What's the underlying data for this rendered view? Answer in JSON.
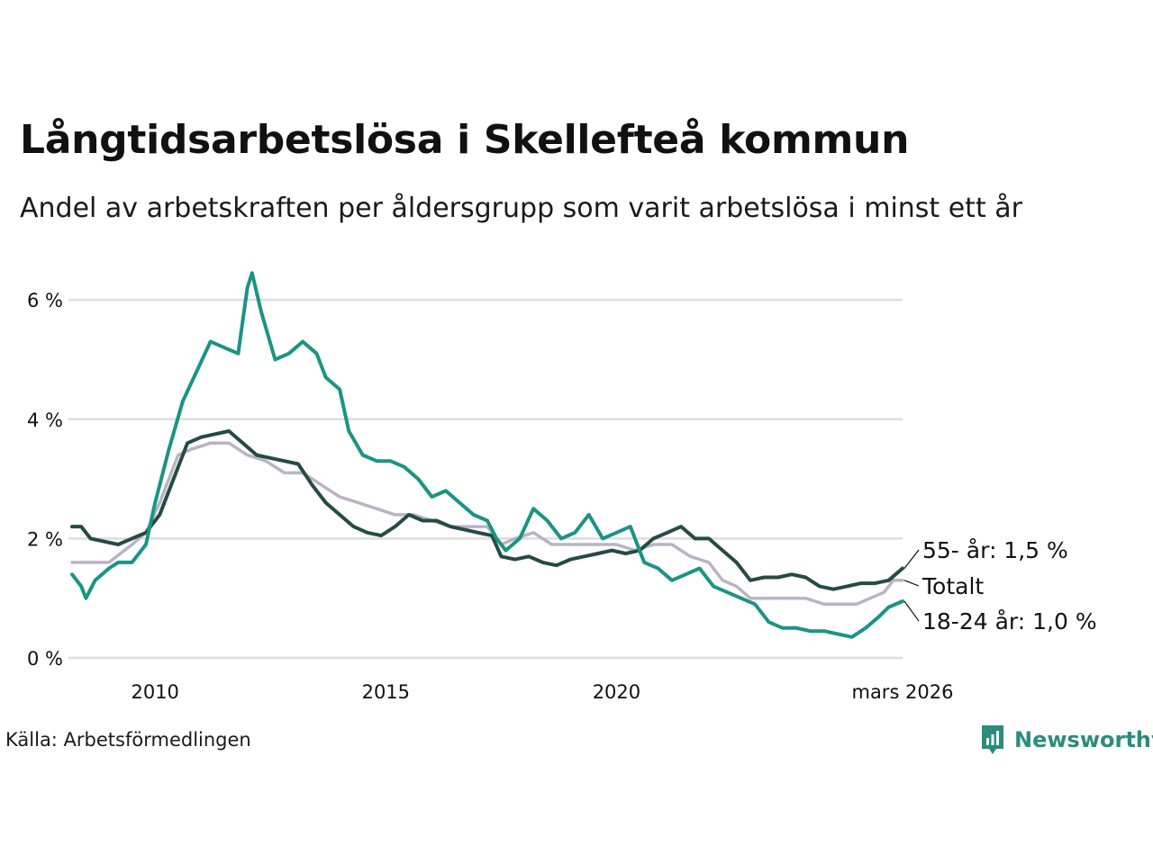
{
  "chart_data": {
    "type": "line",
    "title": "Långtidsarbetslösa i Skellefteå kommun",
    "subtitle": "Andel av arbetskraften per åldersgrupp som varit arbetslösa i minst ett år",
    "source": "Källa: Arbetsförmedlingen",
    "brand": "Newsworthy",
    "x_unit": "år",
    "xlim": [
      2008.2,
      2026.2
    ],
    "ylim": [
      0,
      6.5
    ],
    "yticks": [
      0,
      2,
      4,
      6
    ],
    "ytick_labels": [
      "0 %",
      "2 %",
      "4 %",
      "6 %"
    ],
    "xticks": [
      2010,
      2015,
      2020,
      2026.2
    ],
    "xtick_labels": [
      "2010",
      "2015",
      "2020",
      "mars 2026"
    ],
    "grid": true,
    "colors": {
      "youth": "#1a9484",
      "senior": "#254b45",
      "total": "#b9b4c4",
      "grid": "#dddddd",
      "text": "#111111",
      "brand": "#2a8c7d"
    },
    "series": [
      {
        "key": "total",
        "name": "Totalt",
        "label": "Totalt",
        "color": "#b9b4c4",
        "points": [
          [
            2008.2,
            1.6
          ],
          [
            2008.5,
            1.6
          ],
          [
            2009.0,
            1.6
          ],
          [
            2009.5,
            1.9
          ],
          [
            2009.8,
            2.1
          ],
          [
            2010.1,
            2.6
          ],
          [
            2010.5,
            3.4
          ],
          [
            2010.8,
            3.5
          ],
          [
            2011.2,
            3.6
          ],
          [
            2011.6,
            3.6
          ],
          [
            2012.0,
            3.4
          ],
          [
            2012.4,
            3.3
          ],
          [
            2012.8,
            3.1
          ],
          [
            2013.2,
            3.1
          ],
          [
            2013.6,
            2.9
          ],
          [
            2014.0,
            2.7
          ],
          [
            2014.4,
            2.6
          ],
          [
            2014.8,
            2.5
          ],
          [
            2015.2,
            2.4
          ],
          [
            2015.6,
            2.4
          ],
          [
            2016.0,
            2.3
          ],
          [
            2016.4,
            2.2
          ],
          [
            2016.8,
            2.2
          ],
          [
            2017.2,
            2.2
          ],
          [
            2017.5,
            1.9
          ],
          [
            2017.8,
            2.0
          ],
          [
            2018.2,
            2.1
          ],
          [
            2018.6,
            1.9
          ],
          [
            2019.0,
            1.9
          ],
          [
            2019.5,
            1.9
          ],
          [
            2020.0,
            1.9
          ],
          [
            2020.4,
            1.8
          ],
          [
            2020.8,
            1.9
          ],
          [
            2021.2,
            1.9
          ],
          [
            2021.6,
            1.7
          ],
          [
            2022.0,
            1.6
          ],
          [
            2022.3,
            1.3
          ],
          [
            2022.6,
            1.2
          ],
          [
            2022.9,
            1.0
          ],
          [
            2023.3,
            1.0
          ],
          [
            2023.7,
            1.0
          ],
          [
            2024.1,
            1.0
          ],
          [
            2024.5,
            0.9
          ],
          [
            2024.9,
            0.9
          ],
          [
            2025.2,
            0.9
          ],
          [
            2025.5,
            1.0
          ],
          [
            2025.8,
            1.1
          ],
          [
            2026.0,
            1.3
          ],
          [
            2026.2,
            1.3
          ]
        ]
      },
      {
        "key": "senior",
        "name": "55- år",
        "label": "55- år: 1,5 %",
        "color": "#254b45",
        "points": [
          [
            2008.2,
            2.2
          ],
          [
            2008.4,
            2.2
          ],
          [
            2008.6,
            2.0
          ],
          [
            2008.9,
            1.95
          ],
          [
            2009.2,
            1.9
          ],
          [
            2009.5,
            2.0
          ],
          [
            2009.8,
            2.1
          ],
          [
            2010.1,
            2.4
          ],
          [
            2010.4,
            3.0
          ],
          [
            2010.7,
            3.6
          ],
          [
            2011.0,
            3.7
          ],
          [
            2011.3,
            3.75
          ],
          [
            2011.6,
            3.8
          ],
          [
            2011.9,
            3.6
          ],
          [
            2012.2,
            3.4
          ],
          [
            2012.5,
            3.35
          ],
          [
            2012.8,
            3.3
          ],
          [
            2013.1,
            3.25
          ],
          [
            2013.4,
            2.9
          ],
          [
            2013.7,
            2.6
          ],
          [
            2014.0,
            2.4
          ],
          [
            2014.3,
            2.2
          ],
          [
            2014.6,
            2.1
          ],
          [
            2014.9,
            2.05
          ],
          [
            2015.2,
            2.2
          ],
          [
            2015.5,
            2.4
          ],
          [
            2015.8,
            2.3
          ],
          [
            2016.1,
            2.3
          ],
          [
            2016.4,
            2.2
          ],
          [
            2016.7,
            2.15
          ],
          [
            2017.0,
            2.1
          ],
          [
            2017.3,
            2.05
          ],
          [
            2017.5,
            1.7
          ],
          [
            2017.8,
            1.65
          ],
          [
            2018.1,
            1.7
          ],
          [
            2018.4,
            1.6
          ],
          [
            2018.7,
            1.55
          ],
          [
            2019.0,
            1.65
          ],
          [
            2019.3,
            1.7
          ],
          [
            2019.6,
            1.75
          ],
          [
            2019.9,
            1.8
          ],
          [
            2020.2,
            1.75
          ],
          [
            2020.5,
            1.8
          ],
          [
            2020.8,
            2.0
          ],
          [
            2021.1,
            2.1
          ],
          [
            2021.4,
            2.2
          ],
          [
            2021.7,
            2.0
          ],
          [
            2022.0,
            2.0
          ],
          [
            2022.3,
            1.8
          ],
          [
            2022.6,
            1.6
          ],
          [
            2022.9,
            1.3
          ],
          [
            2023.2,
            1.35
          ],
          [
            2023.5,
            1.35
          ],
          [
            2023.8,
            1.4
          ],
          [
            2024.1,
            1.35
          ],
          [
            2024.4,
            1.2
          ],
          [
            2024.7,
            1.15
          ],
          [
            2025.0,
            1.2
          ],
          [
            2025.3,
            1.25
          ],
          [
            2025.6,
            1.25
          ],
          [
            2025.9,
            1.3
          ],
          [
            2026.2,
            1.5
          ]
        ]
      },
      {
        "key": "youth",
        "name": "18-24 år",
        "label": "18-24 år: 1,0 %",
        "color": "#1a9484",
        "points": [
          [
            2008.2,
            1.4
          ],
          [
            2008.4,
            1.2
          ],
          [
            2008.5,
            1.0
          ],
          [
            2008.7,
            1.3
          ],
          [
            2009.0,
            1.5
          ],
          [
            2009.2,
            1.6
          ],
          [
            2009.5,
            1.6
          ],
          [
            2009.8,
            1.9
          ],
          [
            2010.0,
            2.6
          ],
          [
            2010.3,
            3.5
          ],
          [
            2010.6,
            4.3
          ],
          [
            2010.9,
            4.8
          ],
          [
            2011.2,
            5.3
          ],
          [
            2011.5,
            5.2
          ],
          [
            2011.8,
            5.1
          ],
          [
            2012.0,
            6.2
          ],
          [
            2012.1,
            6.45
          ],
          [
            2012.3,
            5.8
          ],
          [
            2012.6,
            5.0
          ],
          [
            2012.9,
            5.1
          ],
          [
            2013.2,
            5.3
          ],
          [
            2013.5,
            5.1
          ],
          [
            2013.7,
            4.7
          ],
          [
            2014.0,
            4.5
          ],
          [
            2014.2,
            3.8
          ],
          [
            2014.5,
            3.4
          ],
          [
            2014.8,
            3.3
          ],
          [
            2015.1,
            3.3
          ],
          [
            2015.4,
            3.2
          ],
          [
            2015.7,
            3.0
          ],
          [
            2016.0,
            2.7
          ],
          [
            2016.3,
            2.8
          ],
          [
            2016.6,
            2.6
          ],
          [
            2016.9,
            2.4
          ],
          [
            2017.2,
            2.3
          ],
          [
            2017.4,
            2.0
          ],
          [
            2017.6,
            1.8
          ],
          [
            2017.9,
            2.0
          ],
          [
            2018.2,
            2.5
          ],
          [
            2018.5,
            2.3
          ],
          [
            2018.8,
            2.0
          ],
          [
            2019.1,
            2.1
          ],
          [
            2019.4,
            2.4
          ],
          [
            2019.7,
            2.0
          ],
          [
            2020.0,
            2.1
          ],
          [
            2020.3,
            2.2
          ],
          [
            2020.6,
            1.6
          ],
          [
            2020.9,
            1.5
          ],
          [
            2021.2,
            1.3
          ],
          [
            2021.5,
            1.4
          ],
          [
            2021.8,
            1.5
          ],
          [
            2022.1,
            1.2
          ],
          [
            2022.4,
            1.1
          ],
          [
            2022.7,
            1.0
          ],
          [
            2023.0,
            0.9
          ],
          [
            2023.3,
            0.6
          ],
          [
            2023.6,
            0.5
          ],
          [
            2023.9,
            0.5
          ],
          [
            2024.2,
            0.45
          ],
          [
            2024.5,
            0.45
          ],
          [
            2024.8,
            0.4
          ],
          [
            2025.1,
            0.35
          ],
          [
            2025.4,
            0.5
          ],
          [
            2025.7,
            0.7
          ],
          [
            2025.9,
            0.85
          ],
          [
            2026.2,
            0.95
          ]
        ]
      }
    ]
  }
}
